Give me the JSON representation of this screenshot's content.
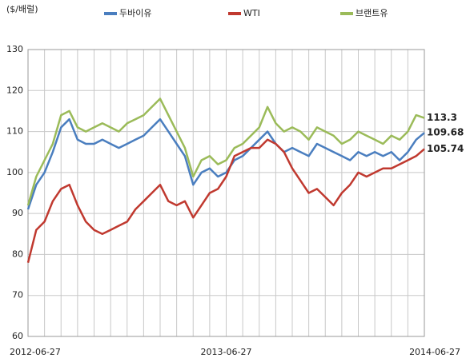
{
  "chart_data": {
    "type": "line",
    "y_label": "($/배럴)",
    "categories": [
      "2012-06-27",
      null,
      null,
      null,
      null,
      null,
      null,
      null,
      null,
      null,
      null,
      null,
      null,
      null,
      null,
      null,
      null,
      null,
      null,
      null,
      null,
      null,
      null,
      null,
      "2013-06-27",
      null,
      null,
      null,
      null,
      null,
      null,
      null,
      null,
      null,
      null,
      null,
      null,
      null,
      null,
      null,
      null,
      null,
      null,
      null,
      null,
      null,
      null,
      null,
      "2014-06-27"
    ],
    "series": [
      {
        "name": "두바이유",
        "color": "#4a7ebf",
        "values": [
          91,
          97,
          100,
          105,
          111,
          113,
          108,
          107,
          107,
          108,
          107,
          106,
          107,
          108,
          109,
          111,
          113,
          110,
          107,
          104,
          97,
          100,
          101,
          99,
          100,
          103,
          104,
          106,
          108,
          110,
          107,
          105,
          106,
          105,
          104,
          107,
          106,
          105,
          104,
          103,
          105,
          104,
          105,
          104,
          105,
          103,
          105,
          108,
          109.68
        ]
      },
      {
        "name": "WTI",
        "color": "#c0392f",
        "values": [
          78,
          86,
          88,
          93,
          96,
          97,
          92,
          88,
          86,
          85,
          86,
          87,
          88,
          91,
          93,
          95,
          97,
          93,
          92,
          93,
          89,
          92,
          95,
          96,
          99,
          104,
          105,
          106,
          106,
          108,
          107,
          105,
          101,
          98,
          95,
          96,
          94,
          92,
          95,
          97,
          100,
          99,
          100,
          101,
          101,
          102,
          103,
          104,
          105.74
        ]
      },
      {
        "name": "브랜트유",
        "color": "#9bbb59",
        "values": [
          92,
          99,
          103,
          107,
          114,
          115,
          111,
          110,
          111,
          112,
          111,
          110,
          112,
          113,
          114,
          116,
          118,
          114,
          110,
          106,
          99,
          103,
          104,
          102,
          103,
          106,
          107,
          109,
          111,
          116,
          112,
          110,
          111,
          110,
          108,
          111,
          110,
          109,
          107,
          108,
          110,
          109,
          108,
          107,
          109,
          108,
          110,
          114,
          113.3
        ]
      }
    ],
    "ylim": [
      60,
      130
    ],
    "yticks": [
      60,
      70,
      80,
      90,
      100,
      110,
      120,
      130
    ],
    "grid": true
  }
}
